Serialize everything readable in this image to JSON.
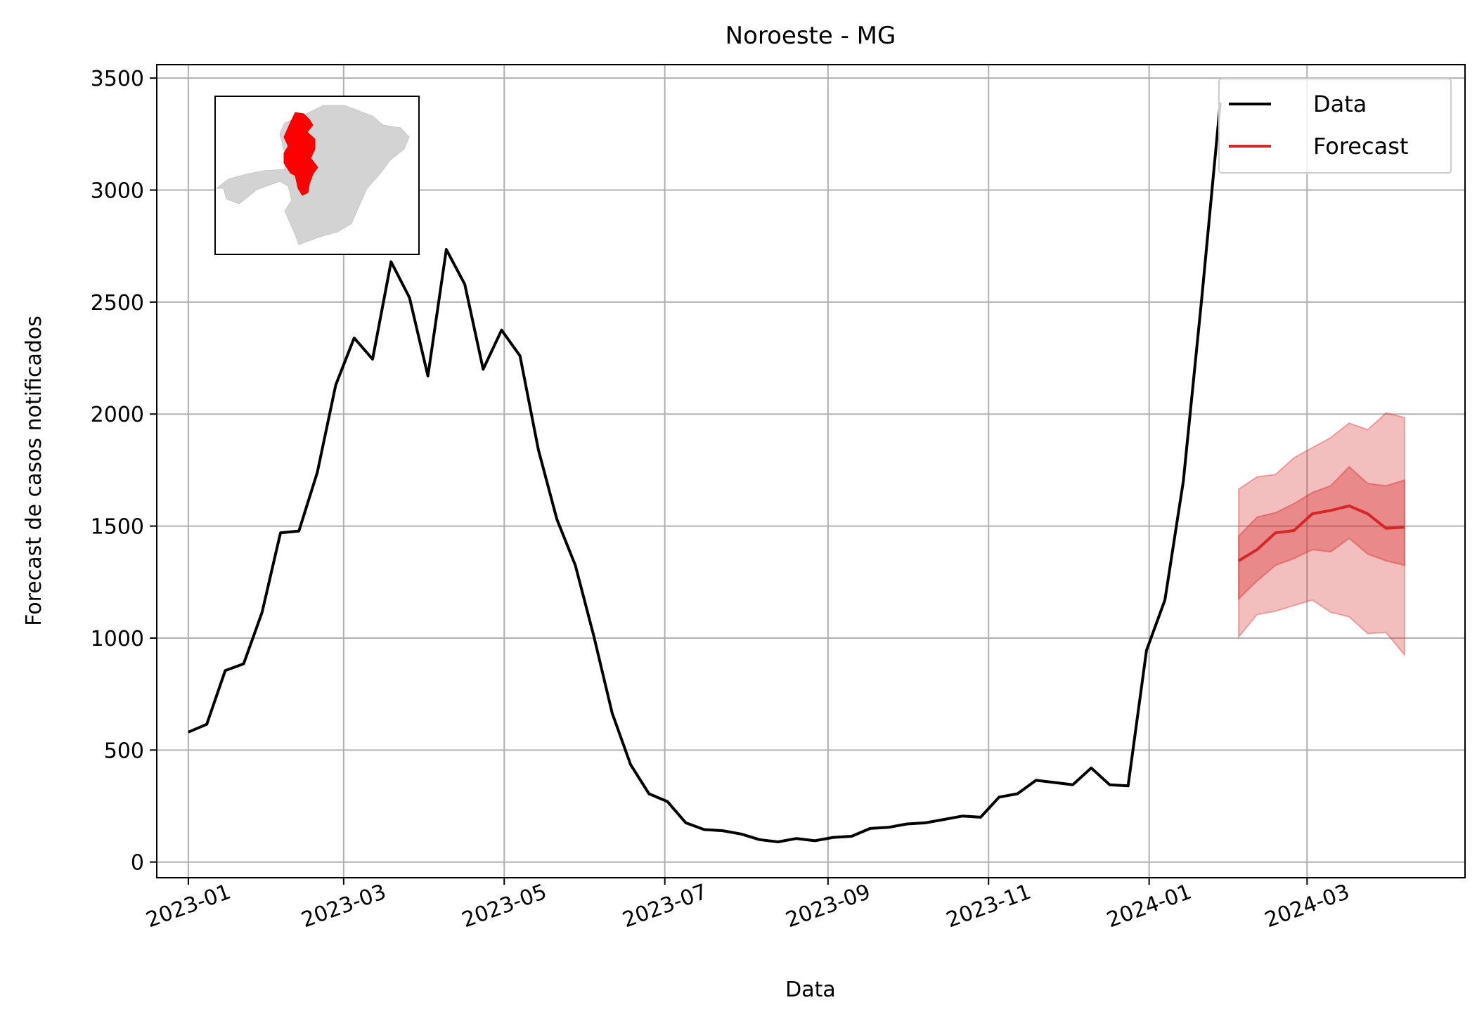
{
  "chart_data": {
    "type": "line",
    "title": "Noroeste - MG",
    "xlabel": "Data",
    "ylabel": "Forecast de casos notificados",
    "ylim": [
      -70,
      3560
    ],
    "xlim": [
      "2022-12-20",
      "2024-04-30"
    ],
    "grid": true,
    "legend_position": "top-right",
    "x_ticks": [
      "2023-01-01",
      "2023-03-01",
      "2023-05-01",
      "2023-07-01",
      "2023-09-01",
      "2023-11-01",
      "2024-01-01",
      "2024-03-01"
    ],
    "x_tick_labels": [
      "2023-01",
      "2023-03",
      "2023-05",
      "2023-07",
      "2023-09",
      "2023-11",
      "2024-01",
      "2024-03"
    ],
    "y_ticks": [
      0,
      500,
      1000,
      1500,
      2000,
      2500,
      3000,
      3500
    ],
    "y_tick_labels": [
      "0",
      "500",
      "1000",
      "1500",
      "2000",
      "2500",
      "3000",
      "3500"
    ],
    "series": [
      {
        "name": "Data",
        "color": "#000000",
        "x": [
          "2023-01-01",
          "2023-01-08",
          "2023-01-15",
          "2023-01-22",
          "2023-01-29",
          "2023-02-05",
          "2023-02-12",
          "2023-02-19",
          "2023-02-26",
          "2023-03-05",
          "2023-03-12",
          "2023-03-19",
          "2023-03-26",
          "2023-04-02",
          "2023-04-09",
          "2023-04-16",
          "2023-04-23",
          "2023-04-30",
          "2023-05-07",
          "2023-05-14",
          "2023-05-21",
          "2023-05-28",
          "2023-06-04",
          "2023-06-11",
          "2023-06-18",
          "2023-06-25",
          "2023-07-02",
          "2023-07-09",
          "2023-07-16",
          "2023-07-23",
          "2023-07-30",
          "2023-08-06",
          "2023-08-13",
          "2023-08-20",
          "2023-08-27",
          "2023-09-03",
          "2023-09-10",
          "2023-09-17",
          "2023-09-24",
          "2023-10-01",
          "2023-10-08",
          "2023-10-15",
          "2023-10-22",
          "2023-10-29",
          "2023-11-05",
          "2023-11-12",
          "2023-11-19",
          "2023-11-26",
          "2023-12-03",
          "2023-12-10",
          "2023-12-17",
          "2023-12-24",
          "2023-12-31",
          "2024-01-07",
          "2024-01-14",
          "2024-01-21",
          "2024-01-28"
        ],
        "values": [
          580,
          615,
          855,
          885,
          1115,
          1470,
          1478,
          1740,
          2130,
          2340,
          2245,
          2680,
          2520,
          2170,
          2735,
          2580,
          2200,
          2375,
          2260,
          1840,
          1530,
          1325,
          1010,
          665,
          435,
          305,
          270,
          175,
          145,
          140,
          125,
          100,
          90,
          105,
          95,
          110,
          115,
          150,
          155,
          170,
          175,
          190,
          205,
          200,
          290,
          305,
          365,
          355,
          345,
          420,
          345,
          340,
          945,
          1170,
          1700,
          2520,
          3390
        ]
      },
      {
        "name": "Forecast",
        "color": "#d62728",
        "x": [
          "2024-02-04",
          "2024-02-11",
          "2024-02-18",
          "2024-02-25",
          "2024-03-03",
          "2024-03-10",
          "2024-03-17",
          "2024-03-24",
          "2024-03-31",
          "2024-04-07"
        ],
        "values": [
          1345,
          1395,
          1470,
          1480,
          1555,
          1570,
          1590,
          1555,
          1490,
          1495
        ],
        "inner_low": [
          1175,
          1255,
          1325,
          1355,
          1395,
          1385,
          1445,
          1375,
          1345,
          1325
        ],
        "inner_high": [
          1455,
          1540,
          1560,
          1600,
          1650,
          1680,
          1765,
          1690,
          1680,
          1705
        ],
        "outer_low": [
          1005,
          1105,
          1120,
          1145,
          1170,
          1115,
          1095,
          1020,
          1025,
          925
        ],
        "outer_high": [
          1665,
          1720,
          1730,
          1805,
          1850,
          1895,
          1960,
          1930,
          2005,
          1985
        ]
      }
    ],
    "inset": {
      "type": "map",
      "region": "Minas Gerais",
      "highlight": "Noroeste",
      "base_color": "#d3d3d3",
      "highlight_color": "#ff0000"
    }
  }
}
